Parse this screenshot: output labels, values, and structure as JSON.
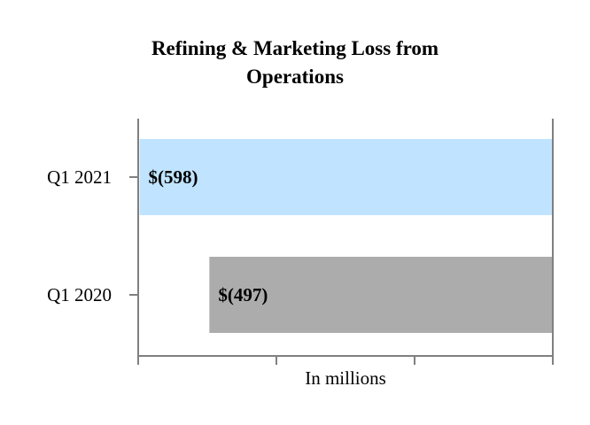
{
  "chart_data": {
    "type": "bar",
    "orientation": "horizontal",
    "title": "Refining & Marketing Loss from Operations",
    "title_lines": [
      "Refining & Marketing Loss from",
      "Operations"
    ],
    "xlabel": "In millions",
    "ylabel": "",
    "categories": [
      "Q1 2021",
      "Q1 2020"
    ],
    "values": [
      -598,
      -497
    ],
    "data_labels": [
      "$(598)",
      "$(497)"
    ],
    "xlim": [
      -600,
      0
    ],
    "x_ticks": [
      -600,
      -400,
      -200,
      0
    ],
    "grid": false,
    "legend": "none",
    "colors": [
      "#c0e4ff",
      "#acacac"
    ],
    "axis_color": "#808080"
  }
}
